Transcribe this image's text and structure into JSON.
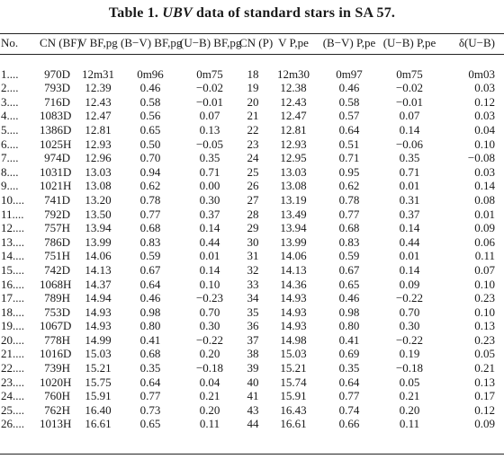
{
  "caption": {
    "prefix": "Table 1.",
    "ubv": "UBV",
    "suffix": "data of standard stars in SA 57."
  },
  "columns": [
    "No.",
    "CN (BF)",
    "V BF,pg",
    "(B−V) BF,pg",
    "(U−B) BF,pg",
    "CN (P)",
    "V P,pe",
    "(B−V) P,pe",
    "(U−B) P,pe",
    "δ(U−B)"
  ],
  "rows": [
    [
      "1....",
      "970D",
      "12m31",
      "0m96",
      "0m75",
      "18",
      "12m30",
      "0m97",
      "0m75",
      "0m03"
    ],
    [
      "2....",
      "793D",
      "12.39",
      "0.46",
      "−0.02",
      "19",
      "12.38",
      "0.46",
      "−0.02",
      "0.03"
    ],
    [
      "3....",
      "716D",
      "12.43",
      "0.58",
      "−0.01",
      "20",
      "12.43",
      "0.58",
      "−0.01",
      "0.12"
    ],
    [
      "4....",
      "1083D",
      "12.47",
      "0.56",
      "0.07",
      "21",
      "12.47",
      "0.57",
      "0.07",
      "0.03"
    ],
    [
      "5....",
      "1386D",
      "12.81",
      "0.65",
      "0.13",
      "22",
      "12.81",
      "0.64",
      "0.14",
      "0.04"
    ],
    [
      "6....",
      "1025H",
      "12.93",
      "0.50",
      "−0.05",
      "23",
      "12.93",
      "0.51",
      "−0.06",
      "0.10"
    ],
    [
      "7....",
      "974D",
      "12.96",
      "0.70",
      "0.35",
      "24",
      "12.95",
      "0.71",
      "0.35",
      "−0.08"
    ],
    [
      "8....",
      "1031D",
      "13.03",
      "0.94",
      "0.71",
      "25",
      "13.03",
      "0.95",
      "0.71",
      "0.03"
    ],
    [
      "9....",
      "1021H",
      "13.08",
      "0.62",
      "0.00",
      "26",
      "13.08",
      "0.62",
      "0.01",
      "0.14"
    ],
    [
      "10....",
      "741D",
      "13.20",
      "0.78",
      "0.30",
      "27",
      "13.19",
      "0.78",
      "0.31",
      "0.08"
    ],
    [
      "11....",
      "792D",
      "13.50",
      "0.77",
      "0.37",
      "28",
      "13.49",
      "0.77",
      "0.37",
      "0.01"
    ],
    [
      "12....",
      "757H",
      "13.94",
      "0.68",
      "0.14",
      "29",
      "13.94",
      "0.68",
      "0.14",
      "0.09"
    ],
    [
      "13....",
      "786D",
      "13.99",
      "0.83",
      "0.44",
      "30",
      "13.99",
      "0.83",
      "0.44",
      "0.06"
    ],
    [
      "14....",
      "751H",
      "14.06",
      "0.59",
      "0.01",
      "31",
      "14.06",
      "0.59",
      "0.01",
      "0.11"
    ],
    [
      "15....",
      "742D",
      "14.13",
      "0.67",
      "0.14",
      "32",
      "14.13",
      "0.67",
      "0.14",
      "0.07"
    ],
    [
      "16....",
      "1068H",
      "14.37",
      "0.64",
      "0.10",
      "33",
      "14.36",
      "0.65",
      "0.09",
      "0.10"
    ],
    [
      "17....",
      "789H",
      "14.94",
      "0.46",
      "−0.23",
      "34",
      "14.93",
      "0.46",
      "−0.22",
      "0.23"
    ],
    [
      "18....",
      "753D",
      "14.93",
      "0.98",
      "0.70",
      "35",
      "14.93",
      "0.98",
      "0.70",
      "0.10"
    ],
    [
      "19....",
      "1067D",
      "14.93",
      "0.80",
      "0.30",
      "36",
      "14.93",
      "0.80",
      "0.30",
      "0.13"
    ],
    [
      "20....",
      "778H",
      "14.99",
      "0.41",
      "−0.22",
      "37",
      "14.98",
      "0.41",
      "−0.22",
      "0.23"
    ],
    [
      "21....",
      "1016D",
      "15.03",
      "0.68",
      "0.20",
      "38",
      "15.03",
      "0.69",
      "0.19",
      "0.05"
    ],
    [
      "22....",
      "739H",
      "15.21",
      "0.35",
      "−0.18",
      "39",
      "15.21",
      "0.35",
      "−0.18",
      "0.21"
    ],
    [
      "23....",
      "1020H",
      "15.75",
      "0.64",
      "0.04",
      "40",
      "15.74",
      "0.64",
      "0.05",
      "0.13"
    ],
    [
      "24....",
      "760H",
      "15.91",
      "0.77",
      "0.21",
      "41",
      "15.91",
      "0.77",
      "0.21",
      "0.17"
    ],
    [
      "25....",
      "762H",
      "16.40",
      "0.73",
      "0.20",
      "43",
      "16.43",
      "0.74",
      "0.20",
      "0.12"
    ],
    [
      "26....",
      "1013H",
      "16.61",
      "0.65",
      "0.11",
      "44",
      "16.61",
      "0.66",
      "0.11",
      "0.09"
    ]
  ]
}
